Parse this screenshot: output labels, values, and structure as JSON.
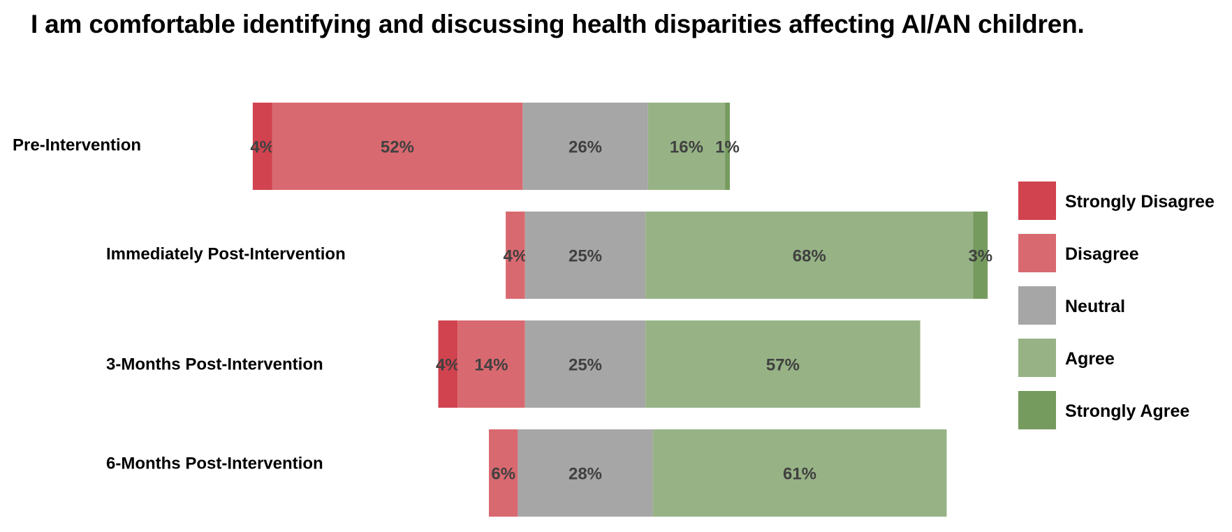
{
  "chart_data": {
    "type": "bar",
    "orientation": "horizontal",
    "stacked": true,
    "layout": "diverging",
    "title": "I am comfortable identifying and discussing health disparities affecting AI/AN children.",
    "categories": [
      "Pre-Intervention",
      "Immediately Post-Intervention",
      "3-Months Post-Intervention",
      "6-Months Post-Intervention"
    ],
    "series": [
      {
        "name": "Strongly Disagree",
        "color": "#d0434f",
        "values": [
          4,
          0,
          4,
          0
        ],
        "labels": [
          "4%",
          "",
          "4%",
          ""
        ]
      },
      {
        "name": "Disagree",
        "color": "#d96970",
        "values": [
          52,
          4,
          14,
          6
        ],
        "labels": [
          "52%",
          "4%",
          "14%",
          "6%"
        ]
      },
      {
        "name": "Neutral",
        "color": "#a6a6a6",
        "values": [
          26,
          25,
          25,
          28
        ],
        "labels": [
          "26%",
          "25%",
          "25%",
          "28%"
        ]
      },
      {
        "name": "Agree",
        "color": "#97b386",
        "values": [
          16,
          68,
          57,
          61
        ],
        "labels": [
          "16%",
          "68%",
          "57%",
          "61%"
        ]
      },
      {
        "name": "Strongly Agree",
        "color": "#769b5f",
        "values": [
          1,
          3,
          0,
          0
        ],
        "labels": [
          "1%",
          "3%",
          "",
          ""
        ]
      }
    ],
    "legend_position": "right",
    "grid": false,
    "xlabel": "",
    "ylabel": ""
  }
}
